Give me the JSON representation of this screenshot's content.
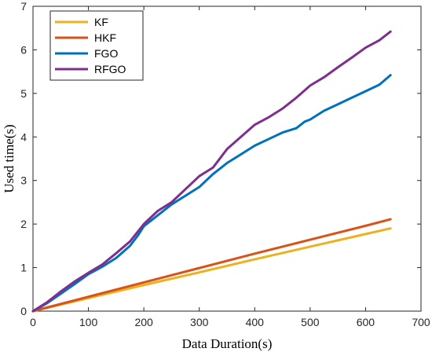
{
  "chart_data": {
    "type": "line",
    "xlabel": "Data Duration(s)",
    "ylabel": "Used time(s)",
    "xlim": [
      0,
      700
    ],
    "ylim": [
      0,
      7
    ],
    "xticks": [
      0,
      100,
      200,
      300,
      400,
      500,
      600,
      700
    ],
    "yticks": [
      0,
      1,
      2,
      3,
      4,
      5,
      6,
      7
    ],
    "grid": false,
    "legend_position": "top-left",
    "series": [
      {
        "name": "KF",
        "color": "#EDB120",
        "x": [
          0,
          100,
          200,
          300,
          400,
          500,
          600,
          645
        ],
        "y": [
          0,
          0.3,
          0.6,
          0.89,
          1.19,
          1.48,
          1.77,
          1.9
        ]
      },
      {
        "name": "HKF",
        "color": "#D95319",
        "x": [
          0,
          100,
          200,
          300,
          400,
          500,
          600,
          645
        ],
        "y": [
          0,
          0.33,
          0.66,
          0.99,
          1.32,
          1.64,
          1.96,
          2.11
        ]
      },
      {
        "name": "FGO",
        "color": "#0072BD",
        "x": [
          0,
          25,
          50,
          75,
          100,
          125,
          150,
          175,
          190,
          200,
          225,
          250,
          275,
          300,
          325,
          350,
          375,
          400,
          425,
          450,
          475,
          490,
          500,
          525,
          550,
          575,
          600,
          625,
          645
        ],
        "y": [
          0,
          0.18,
          0.4,
          0.62,
          0.85,
          1.02,
          1.22,
          1.5,
          1.75,
          1.95,
          2.2,
          2.45,
          2.65,
          2.85,
          3.15,
          3.4,
          3.6,
          3.8,
          3.95,
          4.1,
          4.2,
          4.35,
          4.4,
          4.6,
          4.75,
          4.9,
          5.05,
          5.2,
          5.42
        ]
      },
      {
        "name": "RFGO",
        "color": "#7E2F8E",
        "x": [
          0,
          25,
          50,
          75,
          100,
          125,
          150,
          175,
          200,
          225,
          250,
          275,
          300,
          325,
          350,
          375,
          400,
          425,
          450,
          475,
          500,
          525,
          550,
          575,
          600,
          625,
          645
        ],
        "y": [
          0,
          0.2,
          0.45,
          0.68,
          0.88,
          1.07,
          1.33,
          1.6,
          2.0,
          2.3,
          2.5,
          2.8,
          3.1,
          3.3,
          3.72,
          4.0,
          4.28,
          4.45,
          4.65,
          4.9,
          5.18,
          5.37,
          5.6,
          5.82,
          6.05,
          6.22,
          6.42
        ]
      }
    ]
  }
}
